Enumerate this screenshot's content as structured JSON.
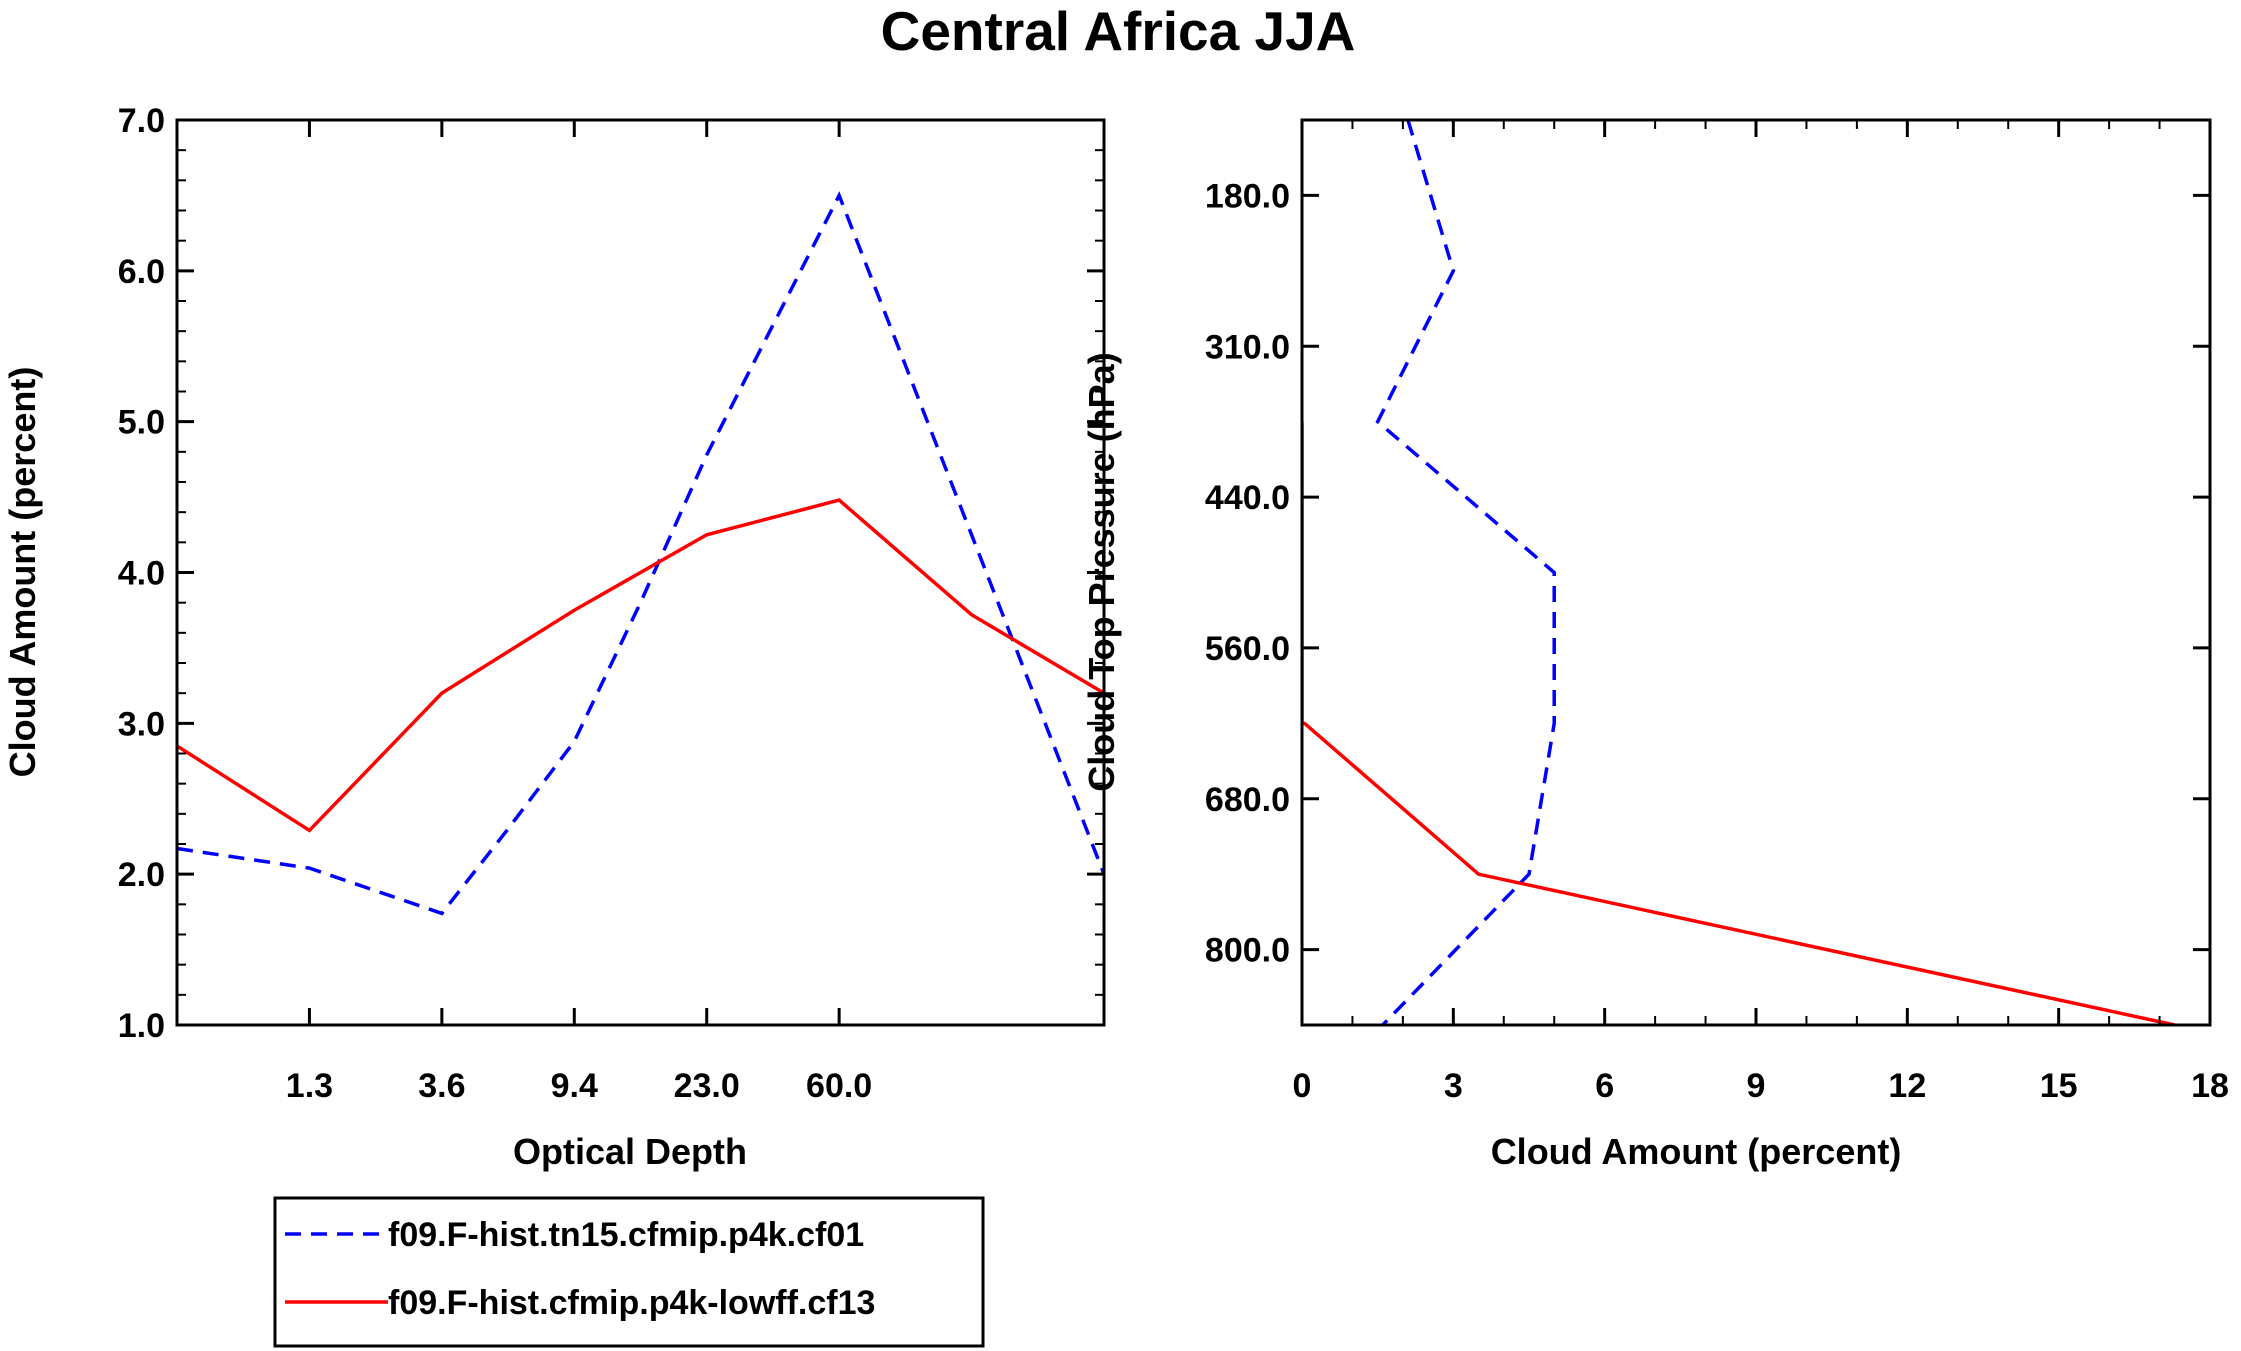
{
  "figure_title": "Central Africa JJA",
  "chart_data": [
    {
      "type": "line",
      "title": "Central Africa JJA",
      "xlabel": "Optical Depth",
      "ylabel": "Cloud Amount (percent)",
      "x_tick_labels": [
        "1.3",
        "3.6",
        "9.4",
        "23.0",
        "60.0"
      ],
      "y_tick_labels": [
        "1.0",
        "2.0",
        "3.0",
        "4.0",
        "5.0",
        "6.0",
        "7.0"
      ],
      "xlim": [
        0,
        7
      ],
      "ylim": [
        1.0,
        7.0
      ],
      "x": [
        0,
        1,
        2,
        3,
        4,
        5,
        6,
        7
      ],
      "series": [
        {
          "name": "f09.F-hist.tn15.cfmip.p4k.cf01",
          "color": "#0000ff",
          "style": "dashed",
          "x": [
            0.0,
            1.0,
            2.0,
            2.5,
            3.0,
            3.5,
            4.0,
            5.0,
            6.0,
            7.0
          ],
          "values": [
            2.17,
            2.04,
            1.74,
            2.3,
            2.88,
            3.8,
            4.78,
            6.5,
            4.25,
            2.0
          ]
        },
        {
          "name": "f09.F-hist.cfmip.p4k-lowff.cf13",
          "color": "#ff0000",
          "style": "solid",
          "x": [
            0.0,
            1.0,
            2.0,
            3.0,
            4.0,
            5.0,
            6.0,
            7.0
          ],
          "values": [
            2.85,
            2.29,
            3.2,
            3.75,
            4.25,
            4.48,
            3.72,
            3.2
          ]
        }
      ]
    },
    {
      "type": "line",
      "xlabel": "Cloud Amount (percent)",
      "ylabel": "Cloud Top Pressure (hPa)",
      "x_tick_labels": [
        "0",
        "3",
        "6",
        "9",
        "12",
        "15",
        "18"
      ],
      "y_tick_labels": [
        "180.0",
        "310.0",
        "440.0",
        "560.0",
        "680.0",
        "800.0"
      ],
      "xlim": [
        0,
        18
      ],
      "ylim_pressure_levels": [
        1,
        7
      ],
      "series": [
        {
          "name": "f09.F-hist.tn15.cfmip.p4k.cf01",
          "color": "#0000ff",
          "style": "dashed",
          "x": [
            2.1,
            3.0,
            1.5,
            5.0,
            5.0,
            4.5,
            1.6
          ],
          "y": [
            1.0,
            2.0,
            3.0,
            4.0,
            5.0,
            6.0,
            7.0
          ]
        },
        {
          "name": "f09.F-hist.cfmip.p4k-lowff.cf13",
          "color": "#ff0000",
          "style": "solid",
          "x": [
            0.0,
            0.0,
            0.0,
            0.05,
            3.5,
            17.3
          ],
          "y": [
            3.0,
            4.0,
            5.0,
            5.0,
            6.0,
            7.0
          ]
        }
      ]
    }
  ],
  "legend": [
    {
      "label": "f09.F-hist.tn15.cfmip.p4k.cf01",
      "color": "#0000ff",
      "style": "dashed"
    },
    {
      "label": "f09.F-hist.cfmip.p4k-lowff.cf13",
      "color": "#ff0000",
      "style": "solid"
    }
  ]
}
